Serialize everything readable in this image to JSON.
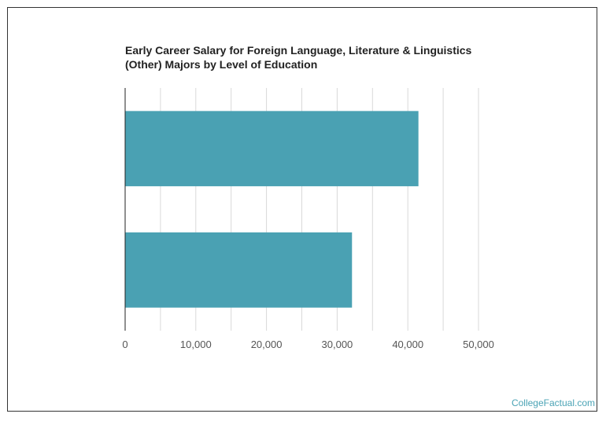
{
  "title_lines": [
    "Early Career Salary for Foreign Language, Literature & Linguistics",
    "(Other) Majors by Level of Education"
  ],
  "credit": "CollegeFactual.com",
  "colors": {
    "bar": "#4aa1b3",
    "grid": "#d9d9d9",
    "axis": "#222222",
    "credit": "#4aa3b5"
  },
  "chart_data": {
    "type": "bar",
    "orientation": "horizontal",
    "categories": [
      "",
      ""
    ],
    "values": [
      41500,
      32100
    ],
    "xlim": [
      0,
      50000
    ],
    "xticks": [
      0,
      10000,
      20000,
      30000,
      40000,
      50000
    ],
    "xtick_labels": [
      "0",
      "10,000",
      "20,000",
      "30,000",
      "40,000",
      "50,000"
    ],
    "minor_gridlines": [
      5000,
      15000,
      25000,
      35000,
      45000
    ],
    "grid": true,
    "legend": "none"
  }
}
